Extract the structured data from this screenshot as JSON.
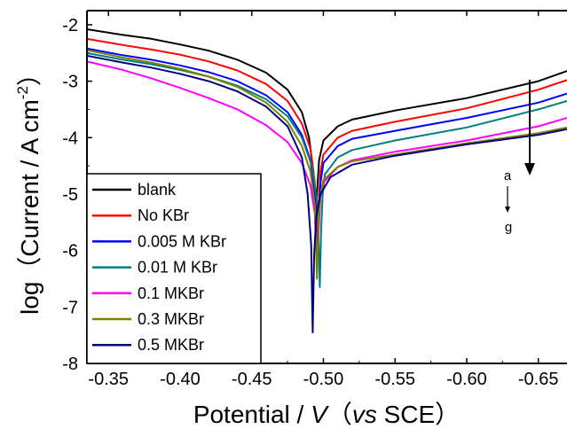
{
  "chart_data": {
    "type": "line",
    "xlabel_parts": [
      "Potential / ",
      "V",
      "（",
      "vs",
      " SCE）"
    ],
    "ylabel_parts": [
      "log（Current / A cm",
      "-2",
      "）"
    ],
    "xlim": [
      -0.335,
      -0.67
    ],
    "ylim": [
      -8,
      -1.75
    ],
    "x_ticks": [
      -0.35,
      -0.4,
      -0.45,
      -0.5,
      -0.55,
      -0.6,
      -0.65
    ],
    "x_tick_labels": [
      "-0.35",
      "-0.40",
      "-0.45",
      "-0.50",
      "-0.55",
      "-0.60",
      "-0.65"
    ],
    "y_ticks": [
      -2,
      -3,
      -4,
      -5,
      -6,
      -7,
      -8
    ],
    "y_tick_labels": [
      "-2",
      "-3",
      "-4",
      "-5",
      "-6",
      "-7",
      "-8"
    ],
    "legend_placement": "bottom-left",
    "annotation": {
      "top": "a",
      "bottom": "g"
    },
    "series": [
      {
        "name": "blank",
        "color": "#000000",
        "x": [
          -0.335,
          -0.36,
          -0.38,
          -0.4,
          -0.42,
          -0.44,
          -0.46,
          -0.475,
          -0.485,
          -0.49,
          -0.493,
          -0.4945,
          -0.4955,
          -0.497,
          -0.5,
          -0.51,
          -0.52,
          -0.55,
          -0.6,
          -0.65,
          -0.67
        ],
        "y": [
          -2.08,
          -2.18,
          -2.25,
          -2.35,
          -2.46,
          -2.62,
          -2.85,
          -3.15,
          -3.55,
          -4.0,
          -4.6,
          -5.6,
          -5.0,
          -4.4,
          -4.05,
          -3.8,
          -3.68,
          -3.52,
          -3.3,
          -3.0,
          -2.82
        ]
      },
      {
        "name": "No KBr",
        "color": "#ff0000",
        "x": [
          -0.335,
          -0.36,
          -0.38,
          -0.4,
          -0.42,
          -0.44,
          -0.46,
          -0.475,
          -0.485,
          -0.491,
          -0.494,
          -0.4955,
          -0.4965,
          -0.498,
          -0.5,
          -0.51,
          -0.52,
          -0.55,
          -0.6,
          -0.65,
          -0.67
        ],
        "y": [
          -2.25,
          -2.36,
          -2.44,
          -2.53,
          -2.65,
          -2.81,
          -3.05,
          -3.35,
          -3.75,
          -4.2,
          -4.8,
          -5.9,
          -5.3,
          -4.6,
          -4.3,
          -4.0,
          -3.88,
          -3.72,
          -3.48,
          -3.15,
          -2.98
        ]
      },
      {
        "name": "0.005 M KBr",
        "color": "#0000ff",
        "x": [
          -0.335,
          -0.36,
          -0.38,
          -0.4,
          -0.42,
          -0.44,
          -0.46,
          -0.475,
          -0.485,
          -0.491,
          -0.494,
          -0.4955,
          -0.4968,
          -0.498,
          -0.5,
          -0.51,
          -0.52,
          -0.55,
          -0.6,
          -0.65,
          -0.67
        ],
        "y": [
          -2.42,
          -2.54,
          -2.62,
          -2.72,
          -2.84,
          -3.0,
          -3.25,
          -3.55,
          -3.95,
          -4.4,
          -5.0,
          -6.2,
          -5.4,
          -4.8,
          -4.45,
          -4.15,
          -4.02,
          -3.88,
          -3.65,
          -3.38,
          -3.22
        ]
      },
      {
        "name": "0.01 M KBr",
        "color": "#007f7f",
        "x": [
          -0.335,
          -0.36,
          -0.38,
          -0.4,
          -0.42,
          -0.44,
          -0.46,
          -0.475,
          -0.485,
          -0.492,
          -0.496,
          -0.4975,
          -0.4985,
          -0.4995,
          -0.501,
          -0.51,
          -0.52,
          -0.55,
          -0.6,
          -0.65,
          -0.67
        ],
        "y": [
          -2.5,
          -2.62,
          -2.7,
          -2.8,
          -2.92,
          -3.08,
          -3.32,
          -3.62,
          -4.0,
          -4.5,
          -5.2,
          -6.65,
          -5.6,
          -5.0,
          -4.65,
          -4.35,
          -4.22,
          -4.05,
          -3.82,
          -3.5,
          -3.35
        ]
      },
      {
        "name": "0.1 MKBr",
        "color": "#ff00ff",
        "x": [
          -0.335,
          -0.36,
          -0.38,
          -0.4,
          -0.42,
          -0.44,
          -0.46,
          -0.475,
          -0.485,
          -0.491,
          -0.494,
          -0.4955,
          -0.4968,
          -0.498,
          -0.5,
          -0.51,
          -0.52,
          -0.55,
          -0.6,
          -0.65,
          -0.67
        ],
        "y": [
          -2.65,
          -2.8,
          -2.95,
          -3.12,
          -3.3,
          -3.5,
          -3.78,
          -4.08,
          -4.45,
          -4.85,
          -5.35,
          -6.3,
          -5.6,
          -5.05,
          -4.8,
          -4.52,
          -4.4,
          -4.25,
          -4.05,
          -3.8,
          -3.65
        ]
      },
      {
        "name": "0.3 MKBr",
        "color": "#808000",
        "x": [
          -0.335,
          -0.36,
          -0.38,
          -0.4,
          -0.42,
          -0.44,
          -0.46,
          -0.475,
          -0.485,
          -0.491,
          -0.494,
          -0.4955,
          -0.4965,
          -0.498,
          -0.5,
          -0.51,
          -0.52,
          -0.55,
          -0.6,
          -0.65,
          -0.67
        ],
        "y": [
          -2.45,
          -2.58,
          -2.67,
          -2.78,
          -2.92,
          -3.1,
          -3.38,
          -3.72,
          -4.15,
          -4.6,
          -5.2,
          -6.5,
          -5.5,
          -5.0,
          -4.75,
          -4.52,
          -4.42,
          -4.3,
          -4.1,
          -3.92,
          -3.82
        ]
      },
      {
        "name": "0.5 MKBr",
        "color": "#000080",
        "x": [
          -0.335,
          -0.36,
          -0.38,
          -0.4,
          -0.42,
          -0.44,
          -0.46,
          -0.475,
          -0.485,
          -0.489,
          -0.4915,
          -0.4925,
          -0.4935,
          -0.495,
          -0.498,
          -0.505,
          -0.52,
          -0.55,
          -0.6,
          -0.65,
          -0.67
        ],
        "y": [
          -2.55,
          -2.67,
          -2.76,
          -2.87,
          -3.0,
          -3.18,
          -3.45,
          -3.8,
          -4.35,
          -5.0,
          -5.9,
          -7.45,
          -6.1,
          -5.4,
          -5.0,
          -4.7,
          -4.48,
          -4.32,
          -4.12,
          -3.95,
          -3.85
        ]
      }
    ]
  }
}
